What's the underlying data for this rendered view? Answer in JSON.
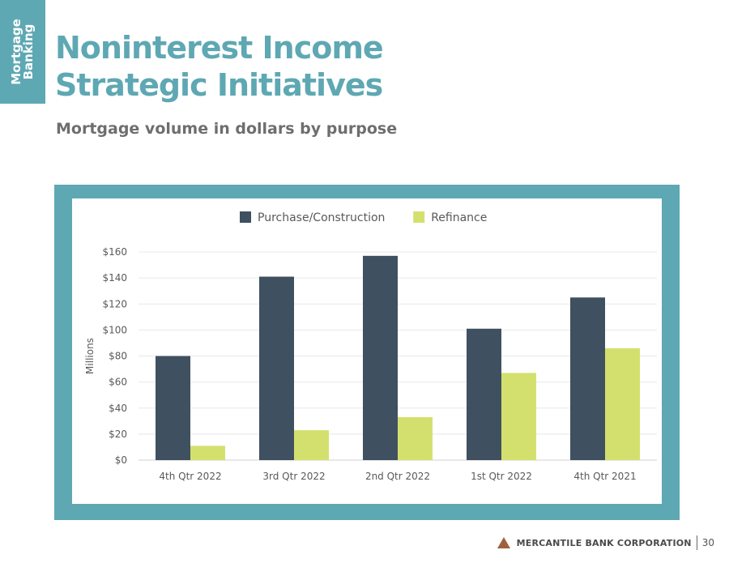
{
  "side_tab": {
    "line1": "Mortgage",
    "line2": "Banking"
  },
  "header": {
    "title_line1": "Noninterest Income",
    "title_line2": "Strategic Initiatives",
    "subtitle": "Mortgage volume in dollars by purpose"
  },
  "footer": {
    "company": "MERCANTILE BANK CORPORATION",
    "page": "30"
  },
  "colors": {
    "accent": "#5ea8b3",
    "purchase": "#3f5060",
    "refinance": "#d4e06e",
    "logo": "#a06040"
  },
  "chart_data": {
    "type": "bar",
    "categories": [
      "4th Qtr 2022",
      "3rd Qtr 2022",
      "2nd Qtr 2022",
      "1st Qtr 2022",
      "4th Qtr 2021"
    ],
    "series": [
      {
        "name": "Purchase/Construction",
        "values": [
          80,
          141,
          157,
          101,
          125
        ],
        "color": "#3f5060"
      },
      {
        "name": "Refinance",
        "values": [
          11,
          23,
          33,
          67,
          86
        ],
        "color": "#d4e06e"
      }
    ],
    "ylabel": "Millions",
    "ylim": [
      0,
      160
    ],
    "yticks": [
      0,
      20,
      40,
      60,
      80,
      100,
      120,
      140,
      160
    ],
    "ytick_labels": [
      "$0",
      "$20",
      "$40",
      "$60",
      "$80",
      "$100",
      "$120",
      "$140",
      "$160"
    ],
    "grid": true,
    "legend_position": "top"
  }
}
